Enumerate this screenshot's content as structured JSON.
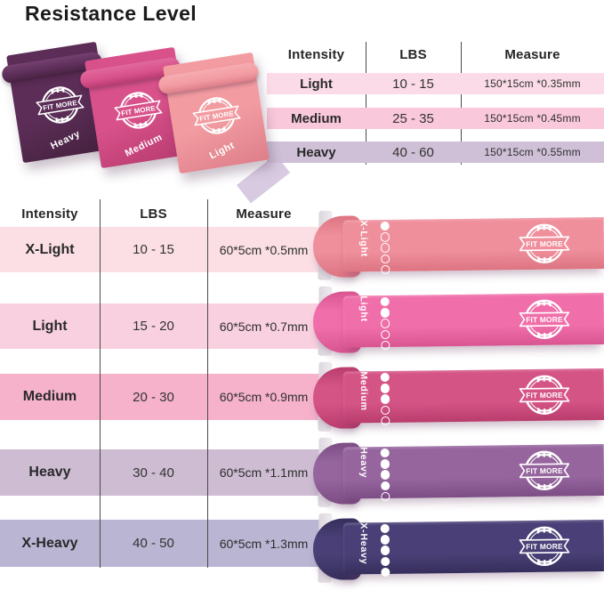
{
  "title": "Resistance Level",
  "brand_logo_text": "FIT MORE",
  "photo": {
    "bands": [
      {
        "label": "Heavy",
        "color": "#5b2d57",
        "color_dark": "#46223f",
        "roll": "#744070"
      },
      {
        "label": "Medium",
        "color": "#d8518a",
        "color_dark": "#b83c70",
        "roll": "#e0699c"
      },
      {
        "label": "Light",
        "color": "#f29ba1",
        "color_dark": "#de7f8a",
        "roll": "#f6acb1"
      }
    ]
  },
  "top_table": {
    "headers": [
      "Intensity",
      "LBS",
      "Measure"
    ],
    "rows": [
      {
        "intensity": "Light",
        "lbs": "10 - 15",
        "measure": "150*15cm *0.35mm",
        "bg": "#fbdbe7"
      },
      {
        "intensity": "Medium",
        "lbs": "25 - 35",
        "measure": "150*15cm *0.45mm",
        "bg": "#f9c8db"
      },
      {
        "intensity": "Heavy",
        "lbs": "40 - 60",
        "measure": "150*15cm *0.55mm",
        "bg": "#d0c0d7"
      }
    ]
  },
  "bottom_table": {
    "headers": [
      "Intensity",
      "LBS",
      "Measure"
    ],
    "rows": [
      {
        "intensity": "X-Light",
        "lbs": "10 - 15",
        "measure": "60*5cm *0.5mm",
        "bg": "#fbdfe4",
        "band_color": "#ef8f9c",
        "band_dark": "#dd7482",
        "dots_filled": 1,
        "dots_total": 5
      },
      {
        "intensity": "Light",
        "lbs": "15 - 20",
        "measure": "60*5cm *0.7mm",
        "bg": "#f9d0df",
        "band_color": "#f06ea9",
        "band_dark": "#d85591",
        "dots_filled": 2,
        "dots_total": 5
      },
      {
        "intensity": "Medium",
        "lbs": "20 - 30",
        "measure": "60*5cm *0.9mm",
        "bg": "#f6b2cb",
        "band_color": "#d55486",
        "band_dark": "#b93d6e",
        "dots_filled": 3,
        "dots_total": 5
      },
      {
        "intensity": "Heavy",
        "lbs": "30 - 40",
        "measure": "60*5cm *1.1mm",
        "bg": "#cdbcd2",
        "band_color": "#96659e",
        "band_dark": "#7c4e85",
        "dots_filled": 4,
        "dots_total": 5
      },
      {
        "intensity": "X-Heavy",
        "lbs": "40 - 50",
        "measure": "60*5cm *1.3mm",
        "bg": "#b9b5d3",
        "band_color": "#4a4077",
        "band_dark": "#362e5c",
        "dots_filled": 5,
        "dots_total": 5
      }
    ]
  }
}
